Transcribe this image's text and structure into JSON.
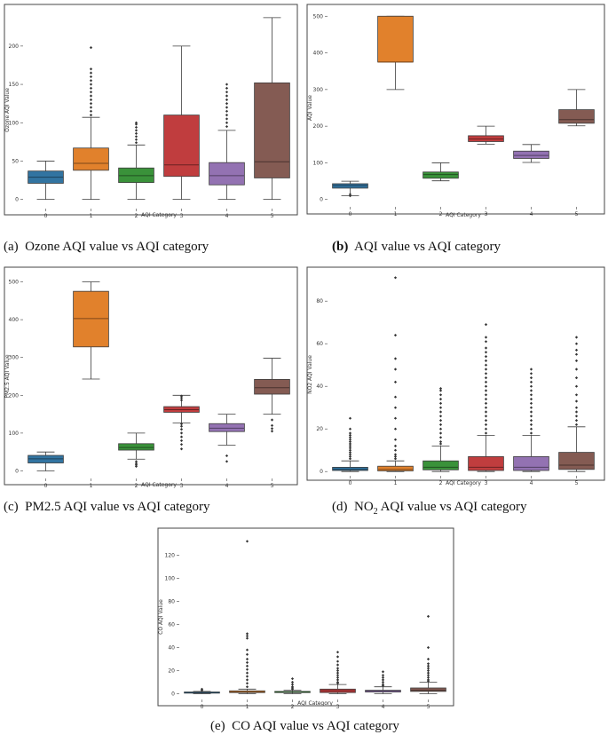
{
  "colors": [
    "#3274a1",
    "#e1812c",
    "#3a923a",
    "#c03d3e",
    "#9372b2",
    "#845b53"
  ],
  "captions": {
    "a": {
      "label": "(a)",
      "text": "Ozone AQI value vs AQI category"
    },
    "b": {
      "label": "(b)",
      "text": "AQI value vs AQI category"
    },
    "c": {
      "label": "(c)",
      "text": "PM2.5 AQI value vs AQI category"
    },
    "d": {
      "label": "(d)",
      "pre": "NO",
      "sub": "2",
      "post": " AQI value vs AQI category"
    },
    "e": {
      "label": "(e)",
      "text": "CO AQI value vs AQI category"
    }
  },
  "chart_data": [
    {
      "id": "a",
      "type": "box",
      "xlabel": "AQI Category",
      "ylabel": "Ozone AQI Value",
      "categories": [
        "0",
        "1",
        "2",
        "3",
        "4",
        "5"
      ],
      "yticks": [
        0,
        50,
        100,
        150,
        200
      ],
      "ylim": [
        -12,
        245
      ],
      "boxes": [
        {
          "whislo": 0,
          "q1": 21,
          "med": 29,
          "q3": 37,
          "whishi": 50,
          "fliers": []
        },
        {
          "whislo": 0,
          "q1": 38,
          "med": 47,
          "q3": 67,
          "whishi": 107,
          "fliers": [
            110,
            115,
            120,
            125,
            130,
            135,
            140,
            145,
            150,
            155,
            160,
            165,
            170,
            198
          ]
        },
        {
          "whislo": 0,
          "q1": 22,
          "med": 31,
          "q3": 41,
          "whishi": 71,
          "fliers": [
            74,
            78,
            82,
            86,
            90,
            94,
            98,
            100
          ]
        },
        {
          "whislo": 0,
          "q1": 30,
          "med": 45,
          "q3": 110,
          "whishi": 200,
          "fliers": []
        },
        {
          "whislo": 0,
          "q1": 19,
          "med": 31,
          "q3": 48,
          "whishi": 90,
          "fliers": [
            95,
            100,
            105,
            110,
            115,
            120,
            125,
            130,
            135,
            140,
            145,
            150
          ]
        },
        {
          "whislo": 0,
          "q1": 28,
          "med": 49,
          "q3": 152,
          "whishi": 237,
          "fliers": []
        }
      ]
    },
    {
      "id": "b",
      "type": "box",
      "xlabel": "AQI Category",
      "ylabel": "AQI Value",
      "categories": [
        "0",
        "1",
        "2",
        "3",
        "4",
        "5"
      ],
      "yticks": [
        0,
        100,
        200,
        300,
        400,
        500
      ],
      "ylim": [
        -20,
        520
      ],
      "boxes": [
        {
          "whislo": 10,
          "q1": 31,
          "med": 38,
          "q3": 43,
          "whishi": 50,
          "fliers": [
            10,
            14
          ]
        },
        {
          "whislo": 300,
          "q1": 375,
          "med": 375,
          "q3": 500,
          "whishi": 500,
          "fliers": []
        },
        {
          "whislo": 51,
          "q1": 58,
          "med": 68,
          "q3": 75,
          "whishi": 100,
          "fliers": []
        },
        {
          "whislo": 151,
          "q1": 158,
          "med": 165,
          "q3": 174,
          "whishi": 200,
          "fliers": []
        },
        {
          "whislo": 101,
          "q1": 112,
          "med": 120,
          "q3": 132,
          "whishi": 150,
          "fliers": []
        },
        {
          "whislo": 201,
          "q1": 208,
          "med": 218,
          "q3": 245,
          "whishi": 300,
          "fliers": []
        }
      ]
    },
    {
      "id": "c",
      "type": "box",
      "xlabel": "AQI Category",
      "ylabel": "PM2.5 AQI Value",
      "categories": [
        "0",
        "1",
        "2",
        "3",
        "4",
        "5"
      ],
      "yticks": [
        0,
        100,
        200,
        300,
        400,
        500
      ],
      "ylim": [
        -20,
        520
      ],
      "boxes": [
        {
          "whislo": 0,
          "q1": 21,
          "med": 32,
          "q3": 41,
          "whishi": 50,
          "fliers": []
        },
        {
          "whislo": 243,
          "q1": 328,
          "med": 403,
          "q3": 475,
          "whishi": 500,
          "fliers": []
        },
        {
          "whislo": 31,
          "q1": 55,
          "med": 62,
          "q3": 72,
          "whishi": 100,
          "fliers": [
            12,
            16,
            20,
            25
          ]
        },
        {
          "whislo": 127,
          "q1": 155,
          "med": 162,
          "q3": 170,
          "whishi": 200,
          "fliers": [
            58,
            70,
            80,
            90,
            100,
            110,
            118,
            124,
            187,
            193,
            198
          ]
        },
        {
          "whislo": 68,
          "q1": 104,
          "med": 113,
          "q3": 125,
          "whishi": 150,
          "fliers": [
            25,
            40
          ]
        },
        {
          "whislo": 150,
          "q1": 203,
          "med": 220,
          "q3": 242,
          "whishi": 298,
          "fliers": [
            105,
            112,
            120,
            135
          ]
        }
      ]
    },
    {
      "id": "d",
      "type": "box",
      "xlabel": "AQI Category",
      "ylabel": "NO2 AQI Value",
      "categories": [
        "0",
        "1",
        "2",
        "3",
        "4",
        "5"
      ],
      "yticks": [
        0,
        20,
        40,
        60,
        80
      ],
      "ylim": [
        -2,
        93
      ],
      "boxes": [
        {
          "whislo": 0,
          "q1": 0.5,
          "med": 1,
          "q3": 2,
          "whishi": 5,
          "fliers": [
            6,
            7,
            8,
            9,
            10,
            11,
            12,
            13,
            14,
            15,
            16,
            17,
            18,
            20,
            25
          ]
        },
        {
          "whislo": 0,
          "q1": 0.3,
          "med": 1,
          "q3": 2.5,
          "whishi": 5,
          "fliers": [
            6,
            7,
            8,
            10,
            12,
            15,
            20,
            25,
            30,
            35,
            42,
            48,
            53,
            64,
            91
          ]
        },
        {
          "whislo": 0,
          "q1": 0.8,
          "med": 2,
          "q3": 5,
          "whishi": 12,
          "fliers": [
            13,
            14,
            16,
            18,
            20,
            22,
            24,
            26,
            28,
            30,
            32,
            34,
            36,
            38,
            39
          ]
        },
        {
          "whislo": 0,
          "q1": 0.5,
          "med": 2,
          "q3": 7,
          "whishi": 17,
          "fliers": [
            18,
            20,
            22,
            24,
            26,
            28,
            30,
            32,
            34,
            36,
            38,
            40,
            42,
            44,
            46,
            48,
            50,
            52,
            54,
            56,
            58,
            61,
            63,
            69
          ]
        },
        {
          "whislo": 0,
          "q1": 0.5,
          "med": 2,
          "q3": 7,
          "whishi": 17,
          "fliers": [
            18,
            20,
            22,
            24,
            26,
            28,
            30,
            32,
            34,
            36,
            38,
            40,
            42,
            44,
            46,
            48
          ]
        },
        {
          "whislo": 0,
          "q1": 1,
          "med": 3,
          "q3": 9,
          "whishi": 21,
          "fliers": [
            22,
            24,
            26,
            28,
            30,
            33,
            36,
            40,
            44,
            48,
            52,
            55,
            57,
            60,
            63
          ]
        }
      ]
    },
    {
      "id": "e",
      "type": "box",
      "xlabel": "AQI Category",
      "ylabel": "CO AQI Value",
      "categories": [
        "0",
        "1",
        "2",
        "3",
        "4",
        "5"
      ],
      "yticks": [
        0,
        20,
        40,
        60,
        80,
        100,
        120
      ],
      "ylim": [
        -5,
        138
      ],
      "boxes": [
        {
          "whislo": 0,
          "q1": 0.5,
          "med": 1,
          "q3": 1.5,
          "whishi": 2,
          "fliers": [
            3,
            4
          ]
        },
        {
          "whislo": 0,
          "q1": 1,
          "med": 1.5,
          "q3": 2.5,
          "whishi": 4,
          "fliers": [
            6,
            9,
            12,
            15,
            18,
            21,
            24,
            27,
            30,
            34,
            38,
            48,
            50,
            52,
            132
          ]
        },
        {
          "whislo": 0,
          "q1": 1,
          "med": 1.5,
          "q3": 2,
          "whishi": 3,
          "fliers": [
            4,
            5,
            6,
            8,
            10,
            13
          ]
        },
        {
          "whislo": 0,
          "q1": 1,
          "med": 2.5,
          "q3": 4,
          "whishi": 8,
          "fliers": [
            9,
            10,
            12,
            14,
            16,
            18,
            20,
            22,
            25,
            28,
            32,
            36
          ]
        },
        {
          "whislo": 0,
          "q1": 1.5,
          "med": 2,
          "q3": 3,
          "whishi": 6,
          "fliers": [
            7,
            8,
            10,
            12,
            14,
            16,
            19
          ]
        },
        {
          "whislo": 0,
          "q1": 2,
          "med": 3,
          "q3": 5,
          "whishi": 10,
          "fliers": [
            11,
            12,
            14,
            16,
            18,
            20,
            22,
            24,
            26,
            30,
            40,
            67
          ]
        }
      ]
    }
  ]
}
